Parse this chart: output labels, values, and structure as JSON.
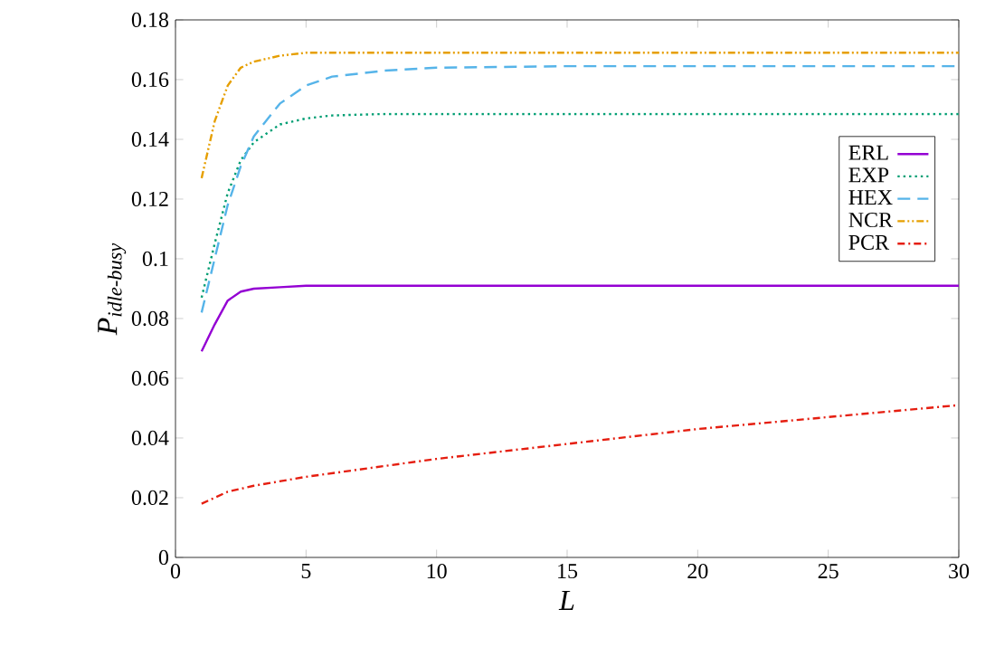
{
  "chart_data": {
    "type": "line",
    "xlabel": "L",
    "ylabel": "P$_{idle-busy}$",
    "xlim": [
      0,
      30
    ],
    "ylim": [
      0,
      0.18
    ],
    "xticks": [
      0,
      5,
      10,
      15,
      20,
      25,
      30
    ],
    "yticks": [
      0,
      0.02,
      0.04,
      0.06,
      0.08,
      0.1,
      0.12,
      0.14,
      0.16,
      0.18
    ],
    "grid": false,
    "legend": "right",
    "marker": "none",
    "series": [
      {
        "name": "ERL",
        "color": "#9400d3",
        "line_style": "solid",
        "x": [
          1,
          1.5,
          2,
          2.5,
          3,
          4,
          5,
          30
        ],
        "values": [
          0.069,
          0.078,
          0.086,
          0.089,
          0.09,
          0.0905,
          0.091,
          0.091
        ]
      },
      {
        "name": "EXP",
        "color": "#009e73",
        "line_style": "dotted",
        "x": [
          1,
          1.5,
          2,
          2.5,
          3,
          4,
          5,
          6,
          8,
          30
        ],
        "values": [
          0.087,
          0.105,
          0.122,
          0.133,
          0.139,
          0.145,
          0.147,
          0.148,
          0.1485,
          0.1485
        ]
      },
      {
        "name": "HEX",
        "color": "#56b4e9",
        "line_style": "dashed",
        "x": [
          1,
          1.5,
          2,
          2.5,
          3,
          4,
          5,
          6,
          8,
          10,
          15,
          30
        ],
        "values": [
          0.082,
          0.1,
          0.118,
          0.131,
          0.141,
          0.152,
          0.158,
          0.161,
          0.163,
          0.164,
          0.1645,
          0.1645
        ]
      },
      {
        "name": "NCR",
        "color": "#e69f00",
        "line_style": "dashdotdotted",
        "x": [
          1,
          1.5,
          2,
          2.5,
          3,
          4,
          5,
          30
        ],
        "values": [
          0.127,
          0.146,
          0.158,
          0.164,
          0.166,
          0.168,
          0.169,
          0.169
        ]
      },
      {
        "name": "PCR",
        "color": "#e51e10",
        "line_style": "dashdotted",
        "x": [
          1,
          2,
          3,
          5,
          10,
          15,
          20,
          25,
          30
        ],
        "values": [
          0.018,
          0.022,
          0.024,
          0.027,
          0.033,
          0.038,
          0.043,
          0.047,
          0.051
        ]
      }
    ]
  }
}
